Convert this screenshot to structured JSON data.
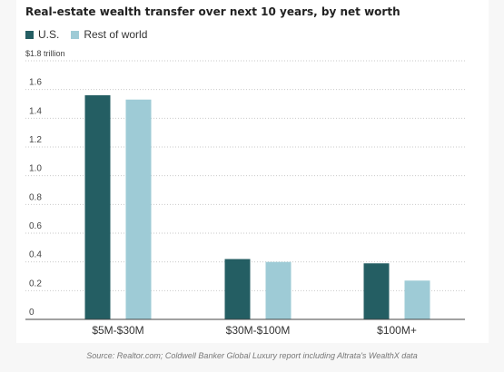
{
  "chart_data": {
    "type": "bar",
    "title": "Real-estate wealth transfer over next 10 years, by net worth",
    "unit_label": "$1.8 trillion",
    "xlabel": "",
    "ylabel": "",
    "categories": [
      "$5M-$30M",
      "$30M-$100M",
      "$100M+"
    ],
    "series": [
      {
        "name": "U.S.",
        "color": "#245e63",
        "values": [
          1.56,
          0.42,
          0.39
        ]
      },
      {
        "name": "Rest of world",
        "color": "#9ecbd6",
        "values": [
          1.53,
          0.4,
          0.27
        ]
      }
    ],
    "ylim": [
      0,
      1.8
    ],
    "yticks": [
      0,
      0.2,
      0.4,
      0.6,
      0.8,
      1.0,
      1.2,
      1.4,
      1.6
    ],
    "ytick_labels": [
      "0",
      "0.2",
      "0.4",
      "0.6",
      "0.8",
      "1.0",
      "1.2",
      "1.4",
      "1.6"
    ],
    "grid": true,
    "grid_style": "dotted",
    "legend_position": "top-left",
    "source": "Source: Realtor.com; Coldwell Banker Global Luxury report including Altrata's WealthX data"
  }
}
